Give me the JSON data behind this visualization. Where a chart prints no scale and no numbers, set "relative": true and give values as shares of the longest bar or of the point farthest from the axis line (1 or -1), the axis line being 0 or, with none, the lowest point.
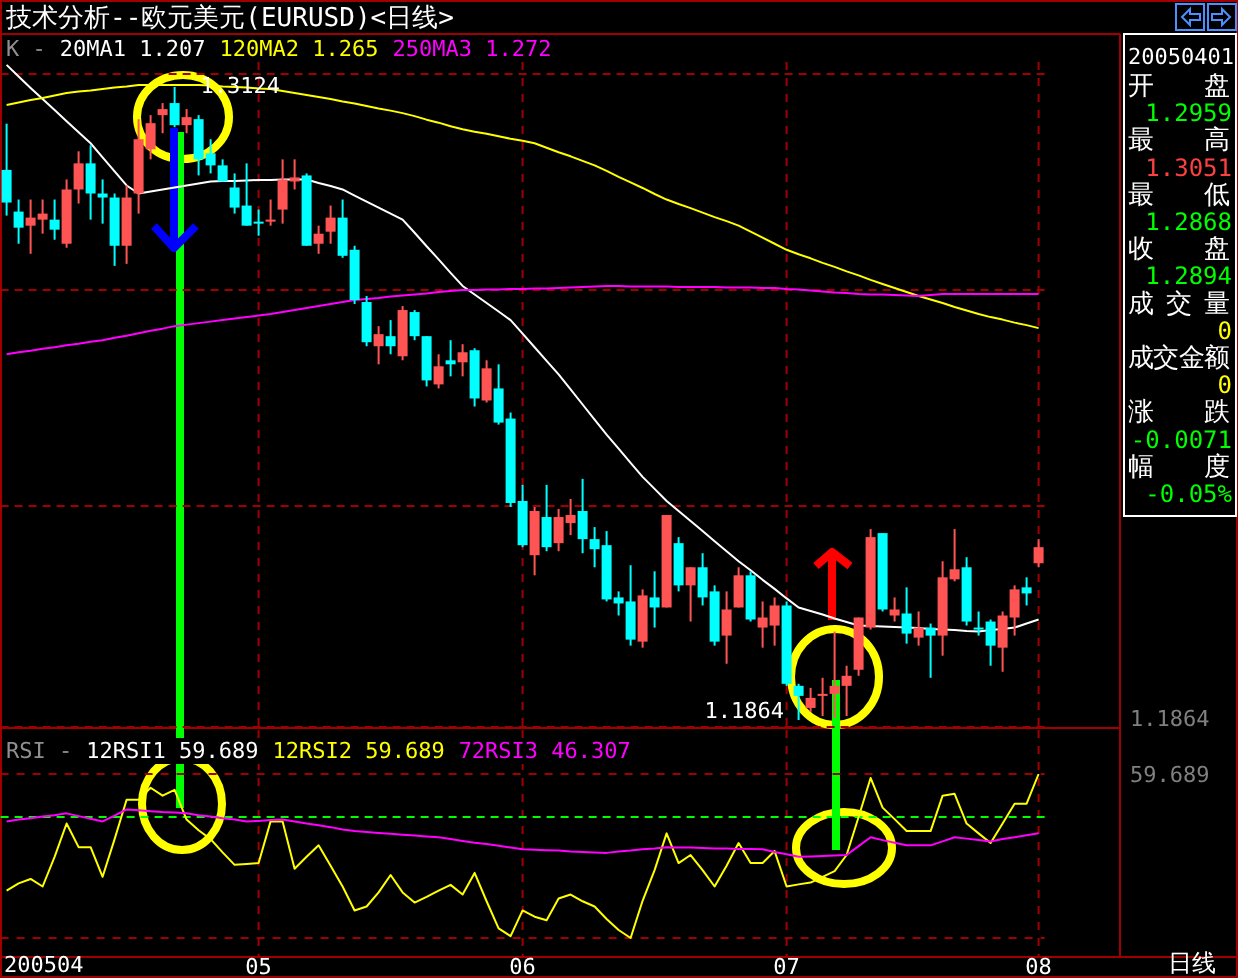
{
  "chart_data": [
    {
      "type": "candlestick",
      "title": "技术分析--欧元美元(EURUSD)<日线>",
      "legend_title": "K -",
      "legend": "top left",
      "grid": "x",
      "tick_labels": false,
      "categories": [
        null,
        null,
        null,
        null,
        null,
        null,
        null,
        null,
        null,
        null,
        null,
        null,
        null,
        null,
        null,
        null,
        null,
        null,
        null,
        null,
        null,
        "05",
        null,
        null,
        null,
        null,
        null,
        null,
        null,
        null,
        null,
        null,
        null,
        null,
        null,
        null,
        null,
        null,
        null,
        null,
        null,
        null,
        null,
        "06",
        null,
        null,
        null,
        null,
        null,
        null,
        null,
        null,
        null,
        null,
        null,
        null,
        null,
        null,
        null,
        null,
        null,
        null,
        null,
        null,
        null,
        "07",
        null,
        null,
        null,
        null,
        null,
        null,
        null,
        null,
        null,
        null,
        null,
        null,
        null,
        null,
        null,
        null,
        null,
        null,
        null,
        null,
        "08"
      ],
      "colors": [
        "#00ffff",
        "#00ffff",
        "#ff5454",
        "#ff5454",
        "#00ffff",
        "#ff5454",
        "#ff5454",
        "#00ffff",
        "#00ffff",
        "#00ffff",
        "#ff5454",
        "#ff5454",
        "#ff5454",
        "#ff5454",
        "#00ffff",
        "#ff5454",
        "#00ffff",
        "#00ffff",
        "#00ffff",
        "#00ffff",
        "#00ffff",
        "#00ffff",
        "#ff5454",
        "#ff5454",
        "#ff5454",
        "#00ffff",
        "#ff5454",
        "#ff5454",
        "#00ffff",
        "#00ffff",
        "#00ffff",
        "#ff5454",
        "#00ffff",
        "#ff5454",
        "#00ffff",
        "#00ffff",
        "#ff5454",
        "#00ffff",
        "#ff5454",
        "#00ffff",
        "#ff5454",
        "#00ffff",
        "#00ffff",
        "#00ffff",
        "#ff5454",
        "#00ffff",
        "#ff5454",
        "#ff5454",
        "#00ffff",
        "#00ffff",
        "#00ffff",
        "#00ffff",
        "#00ffff",
        "#ff5454",
        "#00ffff",
        "#ff5454",
        "#00ffff",
        "#ff5454",
        "#00ffff",
        "#00ffff",
        "#ff5454",
        "#ff5454",
        "#00ffff",
        "#ff5454",
        "#ff5454",
        "#00ffff",
        "#00ffff",
        "#ff5454",
        "#ff5454",
        "#ff5454",
        "#ff5454",
        "#ff5454",
        "#ff5454",
        "#00ffff",
        "#ff5454",
        "#00ffff",
        "#ff5454",
        "#00ffff",
        "#ff5454",
        "#ff5454",
        "#00ffff",
        "#00ffff",
        "#00ffff",
        "#ff5454",
        "#ff5454",
        "#00ffff",
        "#ff5454"
      ],
      "ohlc": [
        [
          1.2959,
          1.3051,
          1.2868,
          1.2894
        ],
        [
          1.2876,
          1.29,
          1.2812,
          1.2844
        ],
        [
          1.2848,
          1.29,
          1.2792,
          1.2864
        ],
        [
          1.286,
          1.29,
          1.2832,
          1.2872
        ],
        [
          1.286,
          1.29,
          1.282,
          1.284
        ],
        [
          1.2812,
          1.294,
          1.2804,
          1.292
        ],
        [
          1.292,
          1.2996,
          1.2892,
          1.2972
        ],
        [
          1.2972,
          1.3008,
          1.286,
          1.2912
        ],
        [
          1.2912,
          1.294,
          1.2852,
          1.2904
        ],
        [
          1.2904,
          1.2912,
          1.2768,
          1.2808
        ],
        [
          1.2808,
          1.2928,
          1.2772,
          1.2904
        ],
        [
          1.2912,
          1.306,
          1.2872,
          1.302
        ],
        [
          1.3,
          1.3068,
          1.298,
          1.3052
        ],
        [
          1.3068,
          1.3092,
          1.3032,
          1.308
        ],
        [
          1.3092,
          1.3124,
          1.3044,
          1.3048
        ],
        [
          1.3048,
          1.308,
          1.3032,
          1.3064
        ],
        [
          1.306,
          1.3068,
          1.2948,
          1.298
        ],
        [
          1.2992,
          1.302,
          1.2952,
          1.2968
        ],
        [
          1.2968,
          1.298,
          1.2936,
          1.2936
        ],
        [
          1.2924,
          1.2952,
          1.2872,
          1.2884
        ],
        [
          1.2888,
          1.2972,
          1.2848,
          1.2848
        ],
        [
          1.2856,
          1.288,
          1.2828,
          1.2852
        ],
        [
          1.2856,
          1.29,
          1.2848,
          1.286
        ],
        [
          1.288,
          1.298,
          1.2852,
          1.294
        ],
        [
          1.2936,
          1.298,
          1.292,
          1.2944
        ],
        [
          1.2948,
          1.2952,
          1.2808,
          1.2808
        ],
        [
          1.2812,
          1.2848,
          1.2792,
          1.2832
        ],
        [
          1.2836,
          1.2888,
          1.2812,
          1.2864
        ],
        [
          1.2864,
          1.29,
          1.2784,
          1.2788
        ],
        [
          1.28,
          1.2808,
          1.2692,
          1.27
        ],
        [
          1.2696,
          1.2708,
          1.2608,
          1.2616
        ],
        [
          1.2608,
          1.2648,
          1.2572,
          1.2632
        ],
        [
          1.2628,
          1.266,
          1.2592,
          1.2608
        ],
        [
          1.2588,
          1.2688,
          1.258,
          1.268
        ],
        [
          1.2676,
          1.268,
          1.262,
          1.2628
        ],
        [
          1.2628,
          1.2628,
          1.2528,
          1.254
        ],
        [
          1.2532,
          1.2592,
          1.2524,
          1.2568
        ],
        [
          1.258,
          1.262,
          1.2548,
          1.2572
        ],
        [
          1.2576,
          1.2612,
          1.2548,
          1.2596
        ],
        [
          1.26,
          1.2604,
          1.2488,
          1.2504
        ],
        [
          1.25,
          1.258,
          1.2496,
          1.2564
        ],
        [
          1.2524,
          1.2572,
          1.2452,
          1.2456
        ],
        [
          1.2464,
          1.2476,
          1.2288,
          1.2296
        ],
        [
          1.23,
          1.2332,
          1.2208,
          1.2212
        ],
        [
          1.2192,
          1.2288,
          1.2152,
          1.228
        ],
        [
          1.2268,
          1.2332,
          1.22,
          1.2208
        ],
        [
          1.2216,
          1.2284,
          1.22,
          1.2268
        ],
        [
          1.2256,
          1.2304,
          1.2232,
          1.2272
        ],
        [
          1.228,
          1.2344,
          1.2196,
          1.2224
        ],
        [
          1.2224,
          1.2248,
          1.2168,
          1.2204
        ],
        [
          1.2212,
          1.224,
          1.21,
          1.2104
        ],
        [
          1.2108,
          1.212,
          1.2072,
          1.2096
        ],
        [
          1.21,
          1.2172,
          1.2012,
          1.2024
        ],
        [
          1.202,
          1.2124,
          1.2008,
          1.2112
        ],
        [
          1.2108,
          1.216,
          1.2048,
          1.2088
        ],
        [
          1.2088,
          1.2272,
          1.2088,
          1.2272
        ],
        [
          1.2216,
          1.2228,
          1.212,
          1.2132
        ],
        [
          1.2132,
          1.2168,
          1.206,
          1.2168
        ],
        [
          1.2168,
          1.2196,
          1.2092,
          1.2108
        ],
        [
          1.212,
          1.2132,
          1.2012,
          1.202
        ],
        [
          1.2032,
          1.212,
          1.1976,
          1.2084
        ],
        [
          1.2088,
          1.2168,
          1.2088,
          1.2152
        ],
        [
          1.2152,
          1.216,
          1.206,
          1.2064
        ],
        [
          1.2048,
          1.21,
          1.2008,
          1.2068
        ],
        [
          1.2052,
          1.2108,
          1.2012,
          1.2092
        ],
        [
          1.2092,
          1.21,
          1.1932,
          1.1936
        ],
        [
          1.1932,
          1.1936,
          1.1864,
          1.1912
        ],
        [
          1.1888,
          1.1928,
          1.188,
          1.1908
        ],
        [
          1.1912,
          1.1948,
          1.1872,
          1.1916
        ],
        [
          1.1916,
          1.204,
          1.1868,
          1.1932
        ],
        [
          1.1932,
          1.1972,
          1.1872,
          1.1952
        ],
        [
          1.1964,
          1.2068,
          1.1952,
          1.2068
        ],
        [
          1.2048,
          1.2244,
          1.2044,
          1.2228
        ],
        [
          1.2236,
          1.2236,
          1.208,
          1.2084
        ],
        [
          1.2072,
          1.2108,
          1.206,
          1.2084
        ],
        [
          1.2076,
          1.2128,
          1.2016,
          1.2036
        ],
        [
          1.2028,
          1.208,
          1.2012,
          1.2048
        ],
        [
          1.2048,
          1.2056,
          1.1948,
          1.2032
        ],
        [
          1.2032,
          1.218,
          1.1992,
          1.2148
        ],
        [
          1.2144,
          1.2244,
          1.214,
          1.2164
        ],
        [
          1.2168,
          1.2188,
          1.2052,
          1.206
        ],
        [
          1.2048,
          1.208,
          1.2032,
          1.2044
        ],
        [
          1.206,
          1.2064,
          1.1972,
          1.2012
        ],
        [
          1.2008,
          1.208,
          1.196,
          1.2072
        ],
        [
          1.2068,
          1.2132,
          1.2032,
          1.2124
        ],
        [
          1.2128,
          1.2148,
          1.2092,
          1.2116
        ],
        [
          1.2176,
          1.2224,
          1.2168,
          1.2208
        ]
      ],
      "series": [
        {
          "type": "line",
          "name": "20MA1 1.207",
          "color": "#ffffff",
          "values": [
            1.3168,
            1.3145,
            1.3122,
            1.31,
            1.3078,
            1.3056,
            1.3034,
            1.3012,
            1.2984,
            1.2956,
            1.2928,
            1.2912,
            1.2916,
            1.292,
            1.2924,
            1.2928,
            1.2932,
            1.2936,
            1.2937,
            1.2937,
            1.2938,
            1.2939,
            1.2939,
            1.294,
            1.294,
            1.294,
            1.2933,
            1.2927,
            1.292,
            1.2908,
            1.2896,
            1.2884,
            1.2872,
            1.286,
            1.2834,
            1.2807,
            1.2781,
            1.2754,
            1.2728,
            1.2711,
            1.2694,
            1.2677,
            1.266,
            1.2633,
            1.2606,
            1.2579,
            1.2552,
            1.2522,
            1.2492,
            1.2462,
            1.2432,
            1.2404,
            1.2376,
            1.2348,
            1.2324,
            1.23,
            1.228,
            1.226,
            1.224,
            1.222,
            1.22,
            1.218,
            1.2162,
            1.2143,
            1.2125,
            1.2106,
            1.2088,
            1.2081,
            1.2074,
            1.2066,
            1.2059,
            1.2052,
            1.2051,
            1.205,
            1.2049,
            1.2048,
            1.2047,
            1.2045,
            1.2044,
            1.2043,
            1.2041,
            1.204,
            1.2043,
            1.2045,
            1.2048,
            1.2056,
            1.2064
          ]
        },
        {
          "type": "line",
          "name": "120MA2 1.265",
          "color": "#ffff00",
          "values": [
            1.3088,
            1.3093,
            1.3098,
            1.3102,
            1.3107,
            1.3112,
            1.3115,
            1.3117,
            1.312,
            1.3123,
            1.3125,
            1.3128,
            1.3128,
            1.3128,
            1.3128,
            1.3128,
            1.3128,
            1.3127,
            1.3125,
            1.3124,
            1.3123,
            1.3121,
            1.312,
            1.3116,
            1.3112,
            1.3108,
            1.3104,
            1.31,
            1.3095,
            1.3091,
            1.3086,
            1.3081,
            1.3077,
            1.3072,
            1.3066,
            1.3059,
            1.3053,
            1.3046,
            1.304,
            1.3035,
            1.3031,
            1.3026,
            1.3021,
            1.3017,
            1.3012,
            1.3003,
            1.2994,
            1.2986,
            1.2977,
            1.2968,
            1.2957,
            1.2945,
            1.2934,
            1.2923,
            1.2911,
            1.29,
            1.2891,
            1.2883,
            1.2874,
            1.2865,
            1.2857,
            1.2848,
            1.2836,
            1.2824,
            1.2812,
            1.28,
            1.2791,
            1.2783,
            1.2774,
            1.2766,
            1.2757,
            1.2749,
            1.274,
            1.2732,
            1.2724,
            1.2716,
            1.2708,
            1.2701,
            1.2694,
            1.2686,
            1.2679,
            1.2672,
            1.2666,
            1.2661,
            1.2655,
            1.265,
            1.2644
          ]
        },
        {
          "type": "line",
          "name": "250MA3 1.272",
          "color": "#ff00ff",
          "values": [
            1.2592,
            1.2596,
            1.2599,
            1.2603,
            1.2606,
            1.261,
            1.2613,
            1.2617,
            1.262,
            1.2625,
            1.2629,
            1.2634,
            1.2639,
            1.2643,
            1.2648,
            1.2651,
            1.2654,
            1.2657,
            1.266,
            1.2663,
            1.2666,
            1.2669,
            1.2672,
            1.2676,
            1.268,
            1.2684,
            1.2688,
            1.2692,
            1.2696,
            1.27,
            1.2702,
            1.2704,
            1.2707,
            1.2709,
            1.2711,
            1.2713,
            1.2716,
            1.2718,
            1.272,
            1.272,
            1.2721,
            1.2721,
            1.2722,
            1.2722,
            1.2723,
            1.2723,
            1.2724,
            1.2725,
            1.2726,
            1.2727,
            1.2728,
            1.2728,
            1.2727,
            1.2727,
            1.2727,
            1.2727,
            1.2726,
            1.2726,
            1.2726,
            1.2726,
            1.2725,
            1.2725,
            1.2725,
            1.2724,
            1.2724,
            1.2722,
            1.2721,
            1.2719,
            1.2717,
            1.2715,
            1.2714,
            1.2712,
            1.2711,
            1.2711,
            1.271,
            1.2709,
            1.2708,
            1.271,
            1.2712,
            1.2712,
            1.2712,
            1.2712,
            1.2712,
            1.2712,
            1.2712,
            1.2712,
            1.2712
          ]
        }
      ],
      "ref_lines": [
        {
          "axis": "y",
          "value": 1.185,
          "color": "#a00000",
          "line_style": "dashed"
        },
        {
          "axis": "y",
          "value": 1.229,
          "color": "#a00000",
          "line_style": "dashed"
        },
        {
          "axis": "y",
          "value": 1.272,
          "color": "#a00000",
          "line_style": "dashed"
        },
        {
          "axis": "y",
          "value": 1.315,
          "color": "#a00000",
          "line_style": "dashed"
        }
      ],
      "annotations": [
        {
          "text": "1.3124",
          "y": 1.3124
        },
        "1.1864",
        "1.1864"
      ]
    },
    {
      "type": "line",
      "relative": true,
      "legend_title": "RSI -",
      "legend": "top left",
      "grid": true,
      "tick_labels": "x",
      "categories": [
        null,
        null,
        null,
        null,
        null,
        null,
        null,
        null,
        null,
        null,
        null,
        null,
        null,
        null,
        null,
        null,
        null,
        null,
        null,
        null,
        null,
        "05",
        null,
        null,
        null,
        null,
        null,
        null,
        null,
        null,
        null,
        null,
        null,
        null,
        null,
        null,
        null,
        null,
        null,
        null,
        null,
        null,
        null,
        "06",
        null,
        null,
        null,
        null,
        null,
        null,
        null,
        null,
        null,
        null,
        null,
        null,
        null,
        null,
        null,
        null,
        null,
        null,
        null,
        null,
        null,
        "07",
        null,
        null,
        null,
        null,
        null,
        null,
        null,
        null,
        null,
        null,
        null,
        null,
        null,
        null,
        null,
        null,
        null,
        null,
        null,
        null,
        "08"
      ],
      "series": [
        {
          "name": "12RSI1 59.689",
          "color": "#ffffff",
          "values": [
            null,
            null,
            null,
            null,
            null,
            null,
            null,
            null,
            null,
            null,
            null,
            null,
            null,
            null,
            null,
            null,
            null,
            null,
            null,
            null,
            null,
            null,
            null,
            null,
            null,
            null,
            null,
            null,
            null,
            null,
            null,
            null,
            null,
            null,
            null,
            null,
            null,
            null,
            null,
            null,
            null,
            null,
            null,
            null,
            null,
            null,
            null,
            null,
            null,
            null,
            null,
            null,
            null,
            null,
            null,
            null,
            null,
            null,
            null,
            null,
            null,
            null,
            null,
            null,
            null,
            null,
            null,
            null,
            null,
            null,
            null,
            null,
            null,
            null,
            null,
            null,
            null,
            null,
            null,
            null,
            null,
            null,
            null,
            null,
            null,
            null,
            null
          ]
        },
        {
          "name": "12RSI2 59.689",
          "color": "#ffff00",
          "values": [
            0.289,
            0.333,
            0.36,
            0.314,
            0.495,
            0.698,
            0.554,
            0.554,
            0.373,
            0.603,
            0.843,
            0.843,
            0.916,
            0.868,
            0.903,
            0.722,
            0.657,
            0.603,
            0.522,
            0.446,
            0.451,
            0.457,
            0.711,
            0.711,
            0.422,
            0.495,
            0.565,
            0.441,
            0.314,
            0.168,
            0.192,
            0.278,
            0.384,
            0.278,
            0.216,
            0.251,
            0.289,
            0.324,
            0.265,
            0.397,
            0.224,
            0.059,
            0.011,
            0.168,
            0.13,
            0.108,
            0.241,
            0.265,
            0.224,
            0.192,
            0.116,
            0.049,
            0,
            0.227,
            0.414,
            0.638,
            0.457,
            0.506,
            0.414,
            0.314,
            0.441,
            0.579,
            0.457,
            0.457,
            0.53,
            0.314,
            0.327,
            0.338,
            0.373,
            0.408,
            0.506,
            0.738,
            0.976,
            0.795,
            0.725,
            0.652,
            0.652,
            0.652,
            0.868,
            0.879,
            0.698,
            0.638,
            0.579,
            0.698,
            0.819,
            0.819,
            1
          ]
        },
        {
          "name": "72RSI3 46.307",
          "color": "#ff00ff",
          "values": [
            0.711,
            0.722,
            0.73,
            0.741,
            0.749,
            0.76,
            0.743,
            0.727,
            0.711,
            0.746,
            0.784,
            0.779,
            0.773,
            0.768,
            0.765,
            0.76,
            0.749,
            0.741,
            0.73,
            0.722,
            0.711,
            0.714,
            0.719,
            0.722,
            0.711,
            0.698,
            0.687,
            0.676,
            0.662,
            0.652,
            0.646,
            0.641,
            0.635,
            0.63,
            0.625,
            0.619,
            0.614,
            0.603,
            0.592,
            0.581,
            0.573,
            0.562,
            0.552,
            0.541,
            0.538,
            0.535,
            0.533,
            0.527,
            0.524,
            0.522,
            0.519,
            0.527,
            0.533,
            0.541,
            0.546,
            0.554,
            0.552,
            0.552,
            0.549,
            0.546,
            0.546,
            0.543,
            0.543,
            0.541,
            0.524,
            0.511,
            0.495,
            0.497,
            0.5,
            0.503,
            0.506,
            0.56,
            0.614,
            0.597,
            0.581,
            0.565,
            0.565,
            0.565,
            0.589,
            0.614,
            0.606,
            0.597,
            0.589,
            0.603,
            0.614,
            0.627,
            0.638
          ]
        }
      ],
      "ref_lines": [
        {
          "axis": "y",
          "value": 0.738,
          "color": "#00ff00",
          "line_style": "dashed"
        }
      ],
      "annotations": [
        "59.689",
        "200504",
        "日线"
      ]
    },
    {
      "type": "other",
      "title": "20050401",
      "annotations": [
        "开盘",
        "1.2959",
        "最高",
        "1.3051",
        "最低",
        "1.2868",
        "收盘",
        "1.2894",
        "成交量",
        "0",
        "成交金额",
        "0",
        "涨跌",
        "-0.0071",
        "幅度",
        "-0.05%"
      ],
      "colors": [
        "#ffffff",
        "#00ff00",
        "#ffffff",
        "#ff4040",
        "#ffffff",
        "#00ff00",
        "#ffffff",
        "#00ff00",
        "#ffffff",
        "#ffff00",
        "#ffffff",
        "#ffff00",
        "#ffffff",
        "#00ff00",
        "#ffffff",
        "#00ff00"
      ]
    }
  ]
}
